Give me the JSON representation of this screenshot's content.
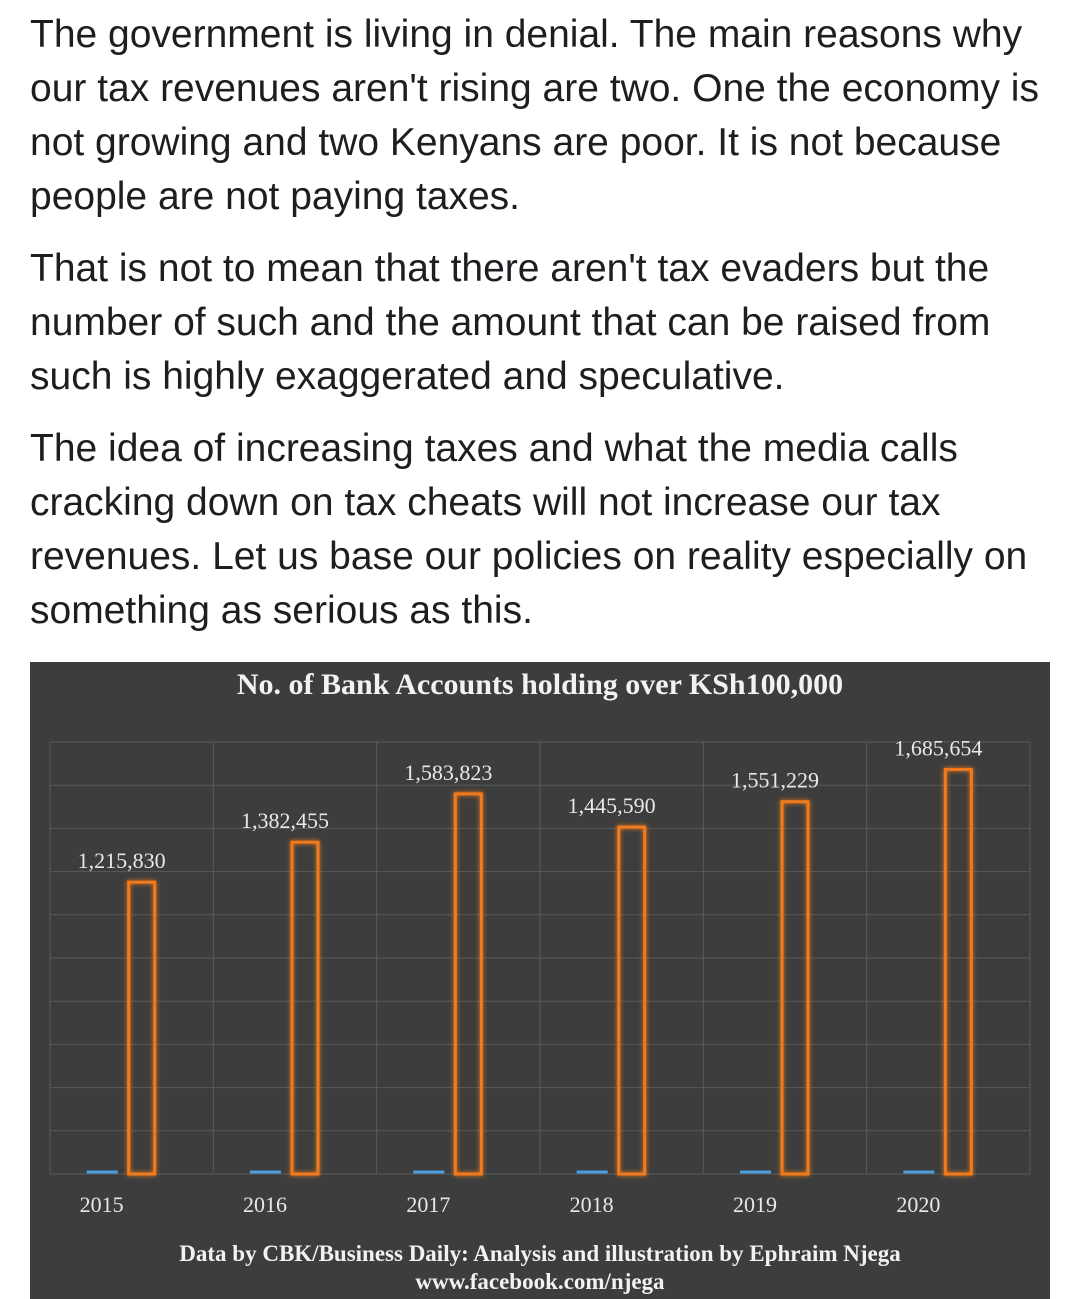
{
  "post": {
    "paragraphs": [
      "The government is living in denial. The main reasons why our tax revenues aren't rising are two. One the economy is not growing and two Kenyans are poor. It is not because people are not paying taxes.",
      "That is not to mean that there aren't tax evaders but the number of such and the amount that can be raised from such is highly exaggerated and speculative.",
      "The idea of increasing taxes and what the media calls cracking down on tax cheats will not increase our tax revenues. Let us base our policies on reality especially on something as serious as this."
    ]
  },
  "chart_data": {
    "type": "bar",
    "title": "No. of Bank Accounts holding over KSh100,000",
    "categories": [
      "2015",
      "2016",
      "2017",
      "2018",
      "2019",
      "2020"
    ],
    "values": [
      1215830,
      1382455,
      1583823,
      1445590,
      1551229,
      1685654
    ],
    "data_labels": [
      "1,215,830",
      "1,382,455",
      "1,583,823",
      "1,445,590",
      "1,551,229",
      "1,685,654"
    ],
    "ylim": [
      0,
      1800000
    ],
    "grid": true,
    "legend": "none",
    "colors": {
      "bar": "#f07a1c",
      "marker": "#4a9fe0",
      "background": "#3d3d3d",
      "grid": "#5a5a5a",
      "text": "#e8e8e8"
    }
  },
  "footer": {
    "line1": "Data by CBK/Business Daily: Analysis and illustration by Ephraim Njega",
    "line2": "www.facebook.com/njega"
  }
}
